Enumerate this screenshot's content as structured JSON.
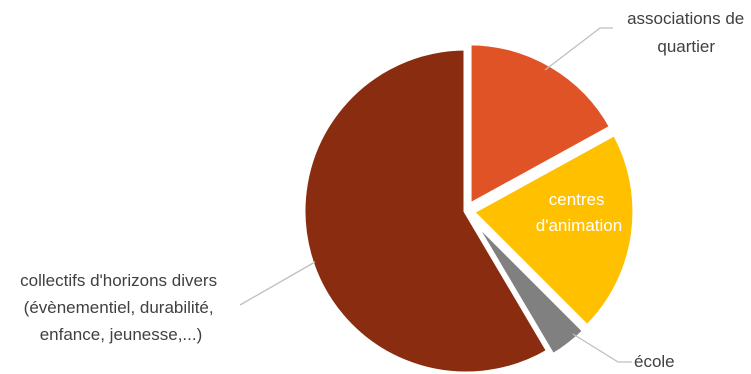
{
  "chart_data": {
    "type": "pie",
    "title": "",
    "start_angle_deg": 0,
    "direction": "clockwise",
    "slices": [
      {
        "label_lines": [
          "associations de",
          "quartier"
        ],
        "value": 17,
        "color": "#E05327",
        "label_position": "outside-top-right"
      },
      {
        "label_lines": [
          "centres",
          "d'animation"
        ],
        "value": 20.5,
        "color": "#FFC000",
        "label_position": "inside"
      },
      {
        "label_lines": [
          "école"
        ],
        "value": 4,
        "color": "#808080",
        "label_position": "outside-bottom-right"
      },
      {
        "label_lines": [
          "collectifs d'horizons divers",
          "(évènementiel, durabilité,",
          "enfance, jeunesse,...)"
        ],
        "value": 58.5,
        "color": "#8A2C10",
        "label_position": "outside-left"
      }
    ],
    "legend": "none"
  }
}
